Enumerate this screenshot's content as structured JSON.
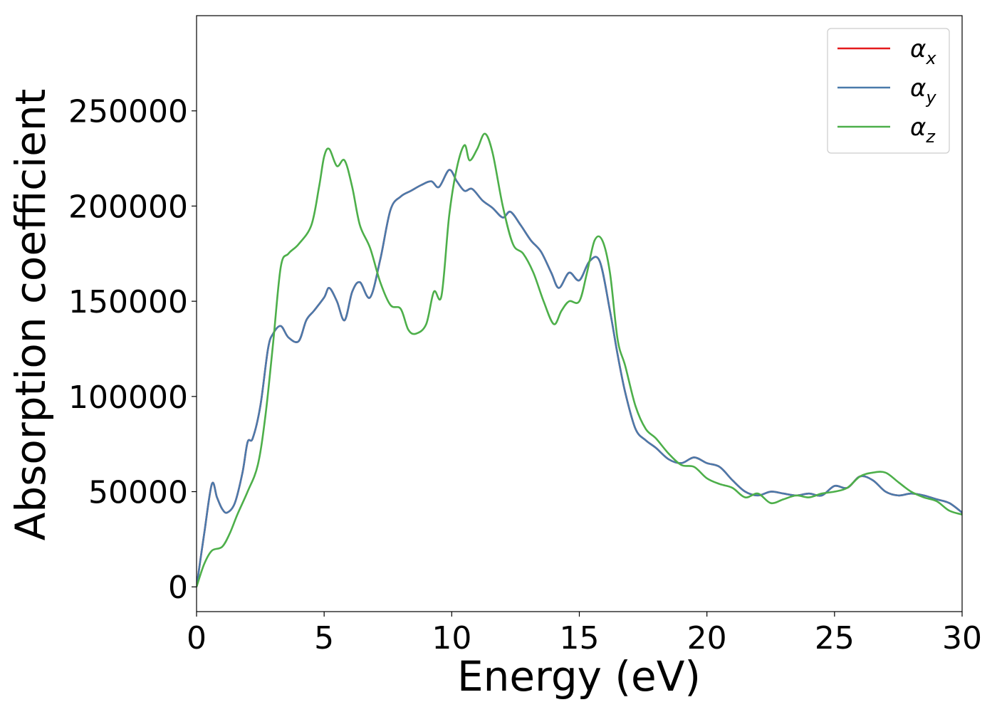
{
  "chart_data": {
    "type": "line",
    "xlabel": "Energy (eV)",
    "ylabel": "Absorption coefficient",
    "xlim": [
      0,
      30
    ],
    "ylim": [
      -13000,
      300000
    ],
    "xticks": [
      0,
      5,
      10,
      15,
      20,
      25,
      30
    ],
    "xtick_labels": [
      "0",
      "5",
      "10",
      "15",
      "20",
      "25",
      "30"
    ],
    "yticks": [
      0,
      50000,
      100000,
      150000,
      200000,
      250000
    ],
    "ytick_labels": [
      "0",
      "50000",
      "100000",
      "150000",
      "200000",
      "250000"
    ],
    "grid": false,
    "legend_position": "top-right",
    "series": [
      {
        "name": "α_x",
        "legend_main": "α",
        "legend_sub": "x",
        "color": "#e41a1c",
        "x": [
          0,
          0.3,
          0.6,
          0.8,
          1.0,
          1.2,
          1.5,
          1.8,
          2.0,
          2.2,
          2.5,
          2.8,
          3.0,
          3.3,
          3.6,
          4.0,
          4.3,
          4.6,
          5.0,
          5.2,
          5.5,
          5.8,
          6.1,
          6.4,
          6.8,
          7.2,
          7.6,
          8.0,
          8.4,
          8.8,
          9.2,
          9.5,
          9.9,
          10.2,
          10.5,
          10.8,
          11.2,
          11.6,
          12.0,
          12.3,
          12.7,
          13.1,
          13.5,
          13.9,
          14.2,
          14.6,
          15.0,
          15.4,
          15.8,
          16.2,
          16.5,
          16.8,
          17.2,
          17.6,
          18.0,
          18.5,
          19.0,
          19.5,
          20.0,
          20.5,
          21.0,
          21.5,
          22.0,
          22.5,
          23.0,
          23.5,
          24.0,
          24.5,
          25.0,
          25.5,
          26.0,
          26.5,
          27.0,
          27.5,
          28.0,
          28.5,
          29.0,
          29.5,
          30.0
        ],
        "values": [
          0,
          28000,
          54000,
          47000,
          41000,
          39000,
          44000,
          60000,
          76000,
          78000,
          95000,
          125000,
          133000,
          137000,
          131000,
          129000,
          140000,
          145000,
          152000,
          157000,
          150000,
          140000,
          155000,
          160000,
          152000,
          172000,
          198000,
          205000,
          208000,
          211000,
          213000,
          210000,
          219000,
          213000,
          208000,
          209000,
          203000,
          199000,
          194000,
          197000,
          190000,
          182000,
          176000,
          165000,
          157000,
          165000,
          161000,
          171000,
          171000,
          145000,
          122000,
          102000,
          83000,
          77000,
          73000,
          67000,
          65000,
          68000,
          65000,
          63000,
          56000,
          50000,
          48000,
          50000,
          49000,
          48000,
          49000,
          48000,
          53000,
          52000,
          58000,
          56000,
          50000,
          48000,
          49000,
          48000,
          46000,
          44000,
          39000
        ]
      },
      {
        "name": "α_y",
        "legend_main": "α",
        "legend_sub": "y",
        "color": "#4a7aab",
        "x": [
          0,
          0.3,
          0.6,
          0.8,
          1.0,
          1.2,
          1.5,
          1.8,
          2.0,
          2.2,
          2.5,
          2.8,
          3.0,
          3.3,
          3.6,
          4.0,
          4.3,
          4.6,
          5.0,
          5.2,
          5.5,
          5.8,
          6.1,
          6.4,
          6.8,
          7.2,
          7.6,
          8.0,
          8.4,
          8.8,
          9.2,
          9.5,
          9.9,
          10.2,
          10.5,
          10.8,
          11.2,
          11.6,
          12.0,
          12.3,
          12.7,
          13.1,
          13.5,
          13.9,
          14.2,
          14.6,
          15.0,
          15.4,
          15.8,
          16.2,
          16.5,
          16.8,
          17.2,
          17.6,
          18.0,
          18.5,
          19.0,
          19.5,
          20.0,
          20.5,
          21.0,
          21.5,
          22.0,
          22.5,
          23.0,
          23.5,
          24.0,
          24.5,
          25.0,
          25.5,
          26.0,
          26.5,
          27.0,
          27.5,
          28.0,
          28.5,
          29.0,
          29.5,
          30.0
        ],
        "values": [
          0,
          28000,
          54000,
          47000,
          41000,
          39000,
          44000,
          60000,
          76000,
          78000,
          95000,
          125000,
          133000,
          137000,
          131000,
          129000,
          140000,
          145000,
          152000,
          157000,
          150000,
          140000,
          155000,
          160000,
          152000,
          172000,
          198000,
          205000,
          208000,
          211000,
          213000,
          210000,
          219000,
          213000,
          208000,
          209000,
          203000,
          199000,
          194000,
          197000,
          190000,
          182000,
          176000,
          165000,
          157000,
          165000,
          161000,
          171000,
          171000,
          145000,
          122000,
          102000,
          83000,
          77000,
          73000,
          67000,
          65000,
          68000,
          65000,
          63000,
          56000,
          50000,
          48000,
          50000,
          49000,
          48000,
          49000,
          48000,
          53000,
          52000,
          58000,
          56000,
          50000,
          48000,
          49000,
          48000,
          46000,
          44000,
          39000
        ]
      },
      {
        "name": "α_z",
        "legend_main": "α",
        "legend_sub": "z",
        "color": "#4daf4a",
        "x": [
          0,
          0.3,
          0.6,
          1.0,
          1.3,
          1.6,
          2.0,
          2.4,
          2.7,
          3.0,
          3.3,
          3.6,
          4.0,
          4.5,
          4.8,
          5.0,
          5.2,
          5.5,
          5.8,
          6.1,
          6.4,
          6.8,
          7.2,
          7.6,
          8.0,
          8.3,
          8.6,
          9.0,
          9.3,
          9.6,
          9.9,
          10.2,
          10.5,
          10.7,
          11.0,
          11.3,
          11.6,
          12.0,
          12.4,
          12.8,
          13.2,
          13.6,
          14.0,
          14.3,
          14.6,
          15.0,
          15.3,
          15.6,
          15.9,
          16.2,
          16.5,
          16.8,
          17.2,
          17.6,
          18.0,
          18.5,
          19.0,
          19.5,
          20.0,
          20.5,
          21.0,
          21.5,
          22.0,
          22.5,
          23.0,
          23.5,
          24.0,
          24.5,
          25.0,
          25.5,
          26.0,
          26.5,
          27.0,
          27.5,
          28.0,
          28.5,
          29.0,
          29.5,
          30.0
        ],
        "values": [
          0,
          12000,
          19000,
          21000,
          28000,
          38000,
          50000,
          64000,
          90000,
          128000,
          168000,
          175000,
          180000,
          190000,
          210000,
          226000,
          230000,
          221000,
          224000,
          210000,
          190000,
          178000,
          160000,
          148000,
          146000,
          135000,
          133000,
          138000,
          155000,
          153000,
          195000,
          220000,
          232000,
          224000,
          230000,
          238000,
          228000,
          200000,
          180000,
          175000,
          165000,
          150000,
          138000,
          145000,
          150000,
          150000,
          165000,
          182000,
          182000,
          165000,
          130000,
          116000,
          95000,
          83000,
          78000,
          70000,
          64000,
          63000,
          57000,
          54000,
          52000,
          47000,
          49000,
          44000,
          46000,
          48000,
          47000,
          49000,
          50000,
          52000,
          58000,
          60000,
          60000,
          55000,
          50000,
          47000,
          45000,
          40000,
          38000
        ]
      }
    ]
  }
}
